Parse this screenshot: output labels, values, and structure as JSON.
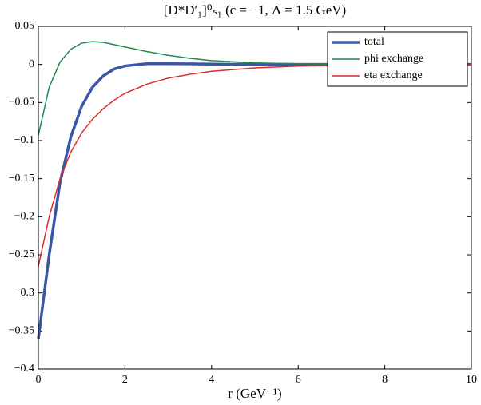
{
  "chart_data": {
    "type": "line",
    "title": "[D*D′₁]⁰ₛ₁ (c = −1, Λ = 1.5 GeV)",
    "x_label": "r (GeV⁻¹)",
    "x": [
      0,
      0.25,
      0.5,
      0.75,
      1,
      1.25,
      1.5,
      1.75,
      2,
      2.5,
      3,
      3.5,
      4,
      5,
      6,
      7,
      8,
      9,
      10
    ],
    "series": [
      {
        "name": "total",
        "color": "#3a56a8",
        "values": [
          -0.36,
          -0.25,
          -0.155,
          -0.095,
          -0.055,
          -0.03,
          -0.015,
          -0.006,
          -0.002,
          0.001,
          0.001,
          0.0008,
          0.0005,
          0.0002,
          0,
          0,
          0,
          0,
          0
        ]
      },
      {
        "name": "phi exchange",
        "color": "#1f8a4c",
        "values": [
          -0.093,
          -0.03,
          0.003,
          0.02,
          0.028,
          0.03,
          0.029,
          0.026,
          0.023,
          0.017,
          0.012,
          0.008,
          0.005,
          0.002,
          0.001,
          0.0004,
          0.0002,
          0.0001,
          0
        ]
      },
      {
        "name": "eta exchange",
        "color": "#dd2a2a",
        "values": [
          -0.265,
          -0.2,
          -0.15,
          -0.115,
          -0.09,
          -0.072,
          -0.058,
          -0.047,
          -0.038,
          -0.026,
          -0.018,
          -0.013,
          -0.009,
          -0.0045,
          -0.0022,
          -0.0011,
          -0.0006,
          -0.0003,
          -0.0002
        ]
      }
    ],
    "xlim": [
      0,
      10
    ],
    "xticks": [
      0,
      2,
      4,
      6,
      8,
      10
    ],
    "ylim": [
      -0.4,
      0.05
    ],
    "yticks": [
      0.05,
      0,
      {
        "value": -0.05,
        "label": "−0.05"
      },
      {
        "value": -0.1,
        "label": "−0.1"
      },
      {
        "value": -0.15,
        "label": "−0.15"
      },
      {
        "value": -0.2,
        "label": "−0.2"
      },
      {
        "value": -0.25,
        "label": "−0.25"
      },
      {
        "value": -0.3,
        "label": "−0.3"
      },
      {
        "value": -0.35,
        "label": "−0.35"
      },
      {
        "value": -0.4,
        "label": "−0.4"
      }
    ],
    "legend": "top-right"
  }
}
